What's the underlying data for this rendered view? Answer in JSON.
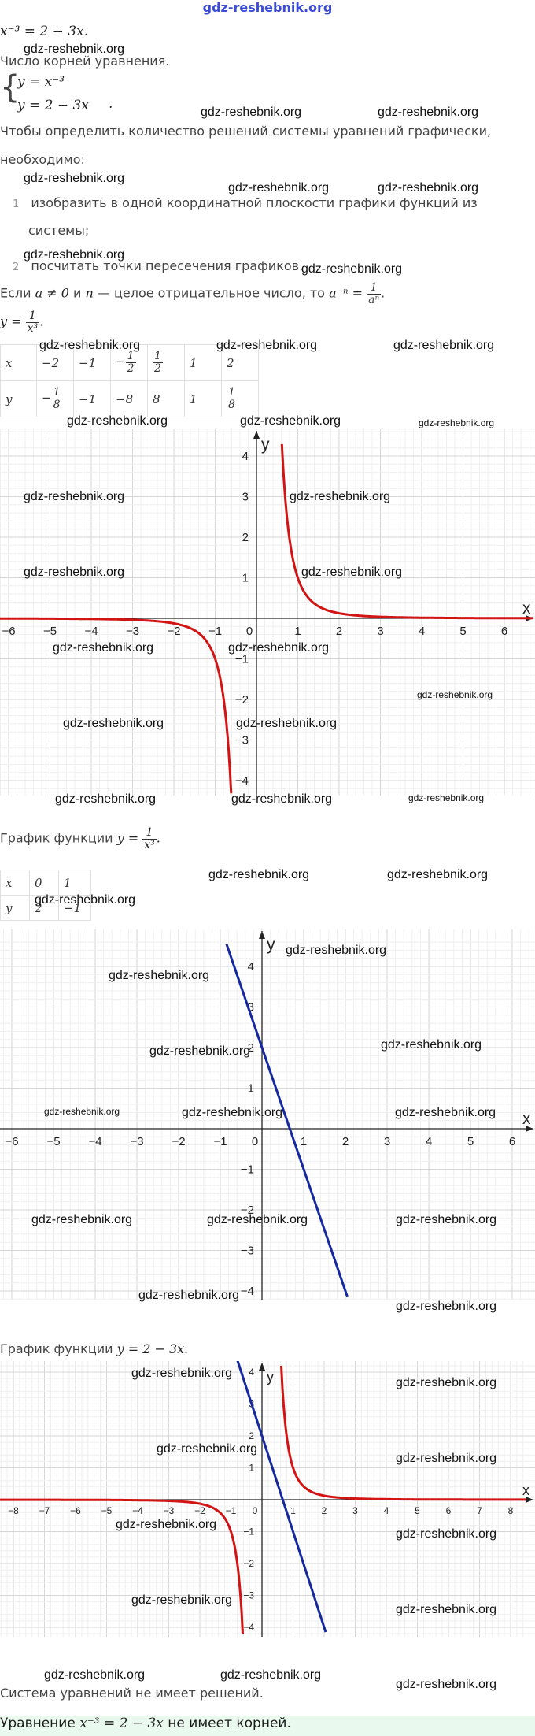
{
  "site": "gdz-reshebnik.org",
  "watermark": "gdz-reshebnik.org",
  "equation": "x⁻³ = 2 − 3x.",
  "line_num_roots": "Число корней уравнения.",
  "system": {
    "eq1": "y = x⁻³",
    "eq2": "y = 2 − 3x",
    "dot": "."
  },
  "intro_line1": "Чтобы определить количество решений системы уравнений графически,",
  "intro_line2": "необходимо:",
  "steps": [
    {
      "num": "1",
      "line1": "изобразить в одной координатной плоскости графики функций из",
      "line2": "системы;"
    },
    {
      "num": "2",
      "line1": "посчитать точки пересечения графиков."
    }
  ],
  "rule": {
    "prefix": "Если ",
    "cond1": "a ≠ 0",
    "and": " и ",
    "n": "n",
    "middle": " — целое отрицательное число, то ",
    "lhs": "a⁻ⁿ =",
    "num": "1",
    "den": "aⁿ",
    "end": "."
  },
  "func1": {
    "lhs": "y =",
    "num": "1",
    "den": "x³",
    "end": "."
  },
  "table1": {
    "header": "x",
    "x": [
      "−2",
      "−1",
      "−1/2",
      "1/2",
      "1",
      "2"
    ],
    "yheader": "y",
    "y": [
      "−1/8",
      "−1",
      "−8",
      "8",
      "1",
      "1/8"
    ]
  },
  "caption1": {
    "text": "График функции ",
    "lhs": "y =",
    "num": "1",
    "den": "x³",
    "end": "."
  },
  "table2": {
    "header": "x",
    "x": [
      "0",
      "1"
    ],
    "yheader": "y",
    "y": [
      "2",
      "−1"
    ]
  },
  "caption2": {
    "text": "График функции ",
    "formula": "y = 2 − 3x."
  },
  "conclusion": "Система уравнений не имеет решений.",
  "answer": {
    "prefix": "Уравнение ",
    "formula": "x⁻³ = 2 − 3x",
    "suffix": " не имеет корней."
  },
  "colors": {
    "hyperbola": "#d21414",
    "line": "#1428a0",
    "answer_bg": "#e9f9ee",
    "site": "#3b4bd8"
  },
  "chart_data": [
    {
      "type": "line",
      "series": [
        {
          "function": "y = 1/x^3"
        }
      ],
      "xlim": [
        -6.5,
        6.8
      ],
      "ylim": [
        -4.3,
        4.6
      ],
      "xticks": [
        "−6",
        "−5",
        "−4",
        "−3",
        "−2",
        "−1",
        "0",
        "1",
        "2",
        "3",
        "4",
        "5",
        "6"
      ],
      "yticks": [
        "4",
        "3",
        "2",
        "1",
        "−1",
        "−2",
        "−3",
        "−4"
      ],
      "xlabel": "x",
      "ylabel": "y",
      "grid": true
    },
    {
      "type": "line",
      "series": [
        {
          "function": "y = 2 − 3x"
        }
      ],
      "xlim": [
        -6.5,
        6.8
      ],
      "ylim": [
        -4.3,
        4.6
      ],
      "xticks": [
        "−6",
        "−5",
        "−4",
        "−3",
        "−2",
        "−1",
        "0",
        "1",
        "2",
        "3",
        "4",
        "5",
        "6"
      ],
      "yticks": [
        "4",
        "3",
        "2",
        "1",
        "−1",
        "−2",
        "−3",
        "−4"
      ],
      "xlabel": "x",
      "ylabel": "y",
      "grid": true
    },
    {
      "type": "line",
      "series": [
        {
          "function": "y = 1/x^3"
        },
        {
          "function": "y = 2 − 3x"
        }
      ],
      "xlim": [
        -8.5,
        8.5
      ],
      "ylim": [
        -4.3,
        4.3
      ],
      "xticks": [
        "−8",
        "−7",
        "−6",
        "−5",
        "−4",
        "−3",
        "−2",
        "−1",
        "0",
        "1",
        "2",
        "3",
        "4",
        "5",
        "6",
        "7",
        "8"
      ],
      "yticks": [
        "4",
        "3",
        "2",
        "1",
        "−1",
        "−2",
        "−3",
        "−4"
      ],
      "xlabel": "x",
      "ylabel": "y",
      "grid": true
    }
  ]
}
